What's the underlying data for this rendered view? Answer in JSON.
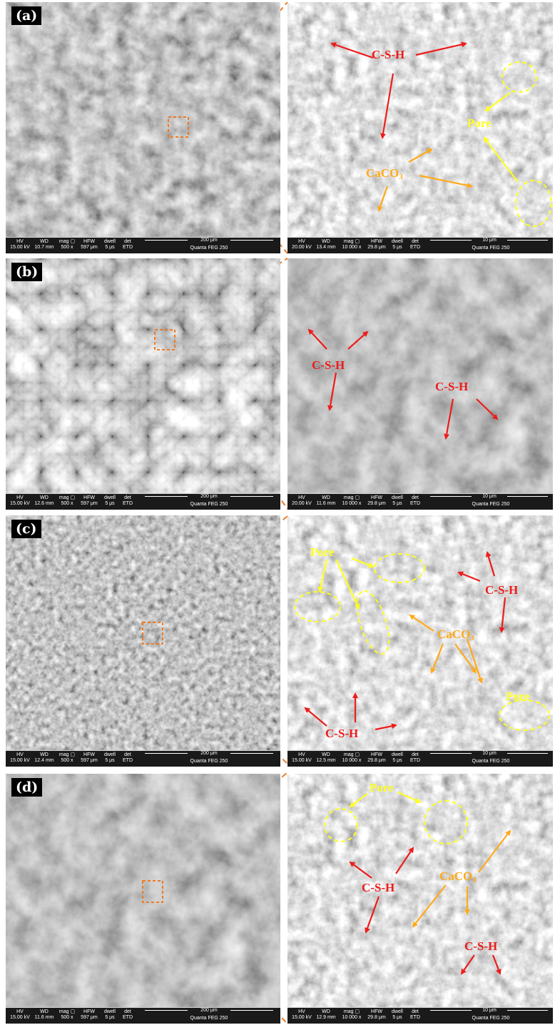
{
  "panels": [
    {
      "label": "(a)",
      "left_bar": {
        "hv": "15.00 kV",
        "wd": "10.7 mm",
        "mag": "500 x",
        "hfw": "597 μm",
        "dwell": "5 μs",
        "det": "ETD",
        "scale": "200 μm",
        "instrument": "Quanta FEG 250"
      },
      "right_bar": {
        "hv": "20.00 kV",
        "wd": "13.4 mm",
        "mag": "10 000 x",
        "hfw": "29.8 μm",
        "dwell": "5 μs",
        "det": "ETD",
        "scale": "10 μm",
        "instrument": "Quanta FEG 250"
      },
      "annotations": {
        "csh_1": "C-S-H",
        "pore_1": "Pore",
        "caco3_1": "CaCO3"
      }
    },
    {
      "label": "(b)",
      "left_bar": {
        "hv": "15.00 kV",
        "wd": "12.6 mm",
        "mag": "500 x",
        "hfw": "597 μm",
        "dwell": "5 μs",
        "det": "ETD",
        "scale": "200 μm",
        "instrument": "Quanta FEG 250"
      },
      "right_bar": {
        "hv": "20.00 kV",
        "wd": "11.6 mm",
        "mag": "10 000 x",
        "hfw": "29.8 μm",
        "dwell": "5 μs",
        "det": "ETD",
        "scale": "10 μm",
        "instrument": "Quanta FEG 250"
      },
      "annotations": {
        "csh_1": "C-S-H",
        "csh_2": "C-S-H"
      }
    },
    {
      "label": "(c)",
      "left_bar": {
        "hv": "15.00 kV",
        "wd": "12.4 mm",
        "mag": "500 x",
        "hfw": "597 μm",
        "dwell": "5 μs",
        "det": "ETD",
        "scale": "200 μm",
        "instrument": "Quanta FEG 250"
      },
      "right_bar": {
        "hv": "15.00 kV",
        "wd": "12.5 mm",
        "mag": "10 000 x",
        "hfw": "29.8 μm",
        "dwell": "5 μs",
        "det": "ETD",
        "scale": "10 μm",
        "instrument": "Quanta FEG 250"
      },
      "annotations": {
        "pore_1": "Pore",
        "csh_1": "C-S-H",
        "caco3_1": "CaCO3",
        "pore_2": "Pore",
        "csh_2": "C-S-H"
      }
    },
    {
      "label": "(d)",
      "left_bar": {
        "hv": "15.00 kV",
        "wd": "11.6 mm",
        "mag": "500 x",
        "hfw": "597 μm",
        "dwell": "5 μs",
        "det": "ETD",
        "scale": "200 μm",
        "instrument": "Quanta FEG 250"
      },
      "right_bar": {
        "hv": "15.00 kV",
        "wd": "12.9 mm",
        "mag": "10 000 x",
        "hfw": "29.8 μm",
        "dwell": "5 μs",
        "det": "ETD",
        "scale": "10 μm",
        "instrument": "Quanta FEG 250"
      },
      "annotations": {
        "pore_1": "Pore",
        "caco3_1": "CaCO3",
        "csh_1": "C-S-H",
        "csh_2": "C-S-H"
      }
    }
  ],
  "bar_headers": {
    "hv": "HV",
    "wd": "WD",
    "mag": "mag",
    "hfw": "HFW",
    "dwell": "dwell",
    "det": "det"
  },
  "colors": {
    "csh": "#ee1c1c",
    "pore": "#ffff22",
    "caco3": "#ffaa1a",
    "zoom_box": "#f07a22"
  }
}
